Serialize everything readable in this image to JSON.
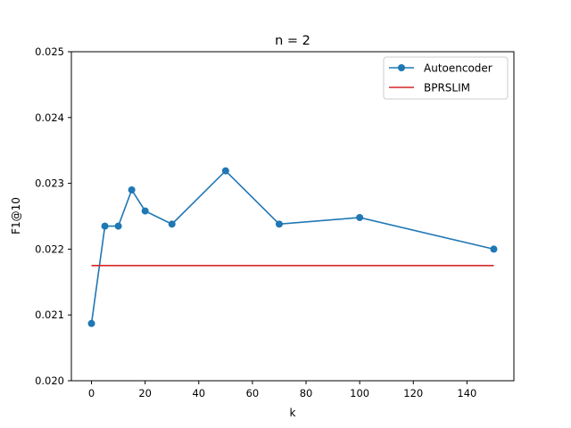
{
  "chart_data": {
    "type": "line",
    "title": "n = 2",
    "xlabel": "k",
    "ylabel": "F1@10",
    "xlim": [
      -7.5,
      157.5
    ],
    "ylim": [
      0.02,
      0.025
    ],
    "xticks": [
      0,
      20,
      40,
      60,
      80,
      100,
      120,
      140
    ],
    "xtick_labels": [
      "0",
      "20",
      "40",
      "60",
      "80",
      "100",
      "120",
      "140"
    ],
    "yticks": [
      0.02,
      0.021,
      0.022,
      0.023,
      0.024,
      0.025
    ],
    "ytick_labels": [
      "0.020",
      "0.021",
      "0.022",
      "0.023",
      "0.024",
      "0.025"
    ],
    "grid": false,
    "legend_position": "top-right",
    "series": [
      {
        "name": "Autoencoder",
        "color": "#1f77b4",
        "marker": "circle",
        "x": [
          0,
          5,
          10,
          15,
          20,
          30,
          50,
          70,
          100,
          150
        ],
        "values": [
          0.02087,
          0.02235,
          0.02235,
          0.0229,
          0.02258,
          0.02238,
          0.02319,
          0.02238,
          0.02248,
          0.022
        ]
      },
      {
        "name": "BPRSLIM",
        "color": "#d62728",
        "marker": "none",
        "x": [
          0,
          150
        ],
        "values": [
          0.02175,
          0.02175
        ]
      }
    ]
  }
}
